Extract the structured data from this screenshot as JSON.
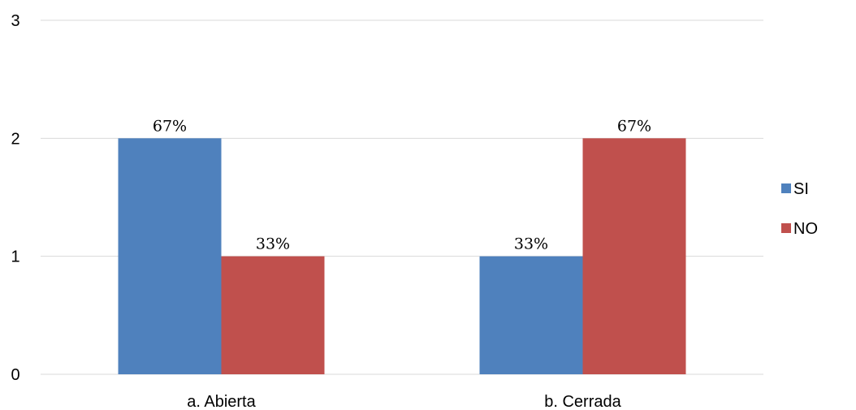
{
  "chart_data": {
    "type": "bar",
    "categories": [
      "a. Abierta",
      "b. Cerrada"
    ],
    "series": [
      {
        "name": "SI",
        "values": [
          2,
          1
        ],
        "labels": [
          "67%",
          "33%"
        ],
        "color": "#4F81BD"
      },
      {
        "name": "NO",
        "values": [
          1,
          2
        ],
        "labels": [
          "33%",
          "67%"
        ],
        "color": "#C0504D"
      }
    ],
    "ylim": [
      0,
      3
    ],
    "yticks": [
      0,
      1,
      2,
      3
    ],
    "grid": true,
    "legend_position": "right",
    "title": "",
    "xlabel": "",
    "ylabel": ""
  }
}
